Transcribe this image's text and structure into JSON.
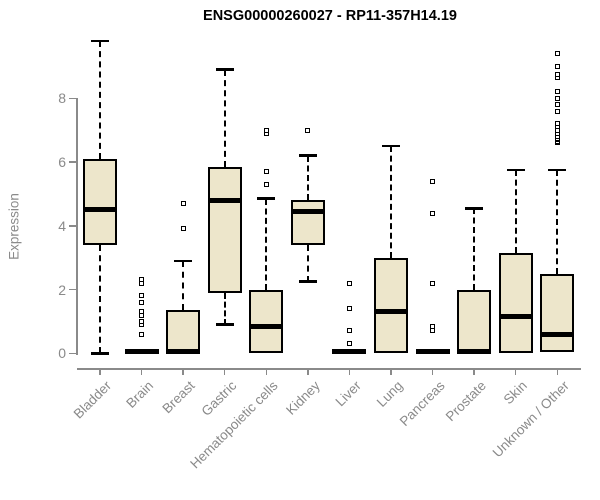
{
  "title": "ENSG00000260027 - RP11-357H14.19",
  "chart_data": {
    "type": "boxplot",
    "title": "ENSG00000260027 - RP11-357H14.19",
    "xlabel": "",
    "ylabel": "Expression",
    "ylim": [
      0,
      9.8
    ],
    "yticks": [
      0,
      2,
      4,
      6,
      8
    ],
    "grid": "off",
    "legend": "none",
    "categories": [
      "Bladder",
      "Brain",
      "Breast",
      "Gastric",
      "Hematopoietic cells",
      "Kidney",
      "Liver",
      "Lung",
      "Pancreas",
      "Prostate",
      "Skin",
      "Unknown / Other"
    ],
    "boxes": [
      {
        "label": "Bladder",
        "whisker_low": 0,
        "q1": 3.4,
        "median": 4.5,
        "q3": 6.1,
        "whisker_high": 9.8,
        "outliers": []
      },
      {
        "label": "Brain",
        "whisker_low": 0,
        "q1": 0,
        "median": 0.05,
        "q3": 0.1,
        "whisker_high": 0.1,
        "outliers": [
          0.6,
          0.9,
          1.0,
          1.2,
          1.3,
          1.6,
          1.8,
          2.2,
          2.3
        ]
      },
      {
        "label": "Breast",
        "whisker_low": 0,
        "q1": 0,
        "median": 0.05,
        "q3": 1.35,
        "whisker_high": 2.9,
        "outliers": [
          3.9,
          4.7
        ]
      },
      {
        "label": "Gastric",
        "whisker_low": 0.9,
        "q1": 1.9,
        "median": 4.8,
        "q3": 5.85,
        "whisker_high": 8.9,
        "outliers": []
      },
      {
        "label": "Hematopoietic cells",
        "whisker_low": 0,
        "q1": 0,
        "median": 0.85,
        "q3": 2.0,
        "whisker_high": 4.85,
        "outliers": [
          5.3,
          5.7,
          6.9,
          7.0
        ]
      },
      {
        "label": "Kidney",
        "whisker_low": 2.25,
        "q1": 3.4,
        "median": 4.45,
        "q3": 4.8,
        "whisker_high": 6.2,
        "outliers": [
          7.0
        ]
      },
      {
        "label": "Liver",
        "whisker_low": 0,
        "q1": 0,
        "median": 0.05,
        "q3": 0.1,
        "whisker_high": 0.1,
        "outliers": [
          0.3,
          0.7,
          1.4,
          2.2
        ]
      },
      {
        "label": "Lung",
        "whisker_low": 0,
        "q1": 0,
        "median": 1.3,
        "q3": 3.0,
        "whisker_high": 6.5,
        "outliers": []
      },
      {
        "label": "Pancreas",
        "whisker_low": 0,
        "q1": 0,
        "median": 0.05,
        "q3": 0.1,
        "whisker_high": 0.1,
        "outliers": [
          0.7,
          0.85,
          2.2,
          4.4,
          5.4
        ]
      },
      {
        "label": "Prostate",
        "whisker_low": 0,
        "q1": 0,
        "median": 0.05,
        "q3": 2.0,
        "whisker_high": 4.55,
        "outliers": []
      },
      {
        "label": "Skin",
        "whisker_low": 0,
        "q1": 0,
        "median": 1.15,
        "q3": 3.15,
        "whisker_high": 5.75,
        "outliers": []
      },
      {
        "label": "Unknown / Other",
        "whisker_low": 0.05,
        "q1": 0.05,
        "median": 0.6,
        "q3": 2.5,
        "whisker_high": 5.75,
        "outliers": [
          6.6,
          6.65,
          6.7,
          6.75,
          6.8,
          6.9,
          7.0,
          7.1,
          7.2,
          7.6,
          7.8,
          8.0,
          8.2,
          8.65,
          8.75,
          9.0,
          9.4
        ]
      }
    ],
    "colors": {
      "box_fill": "#EDE6CB",
      "box_border": "#000000",
      "median": "#000000",
      "whisker": "#000000",
      "outlier_fill": "#ffffff",
      "axis": "#8a8a8a",
      "tick_label": "#8a8a8a",
      "title": "#000000",
      "background": "#ffffff"
    }
  }
}
